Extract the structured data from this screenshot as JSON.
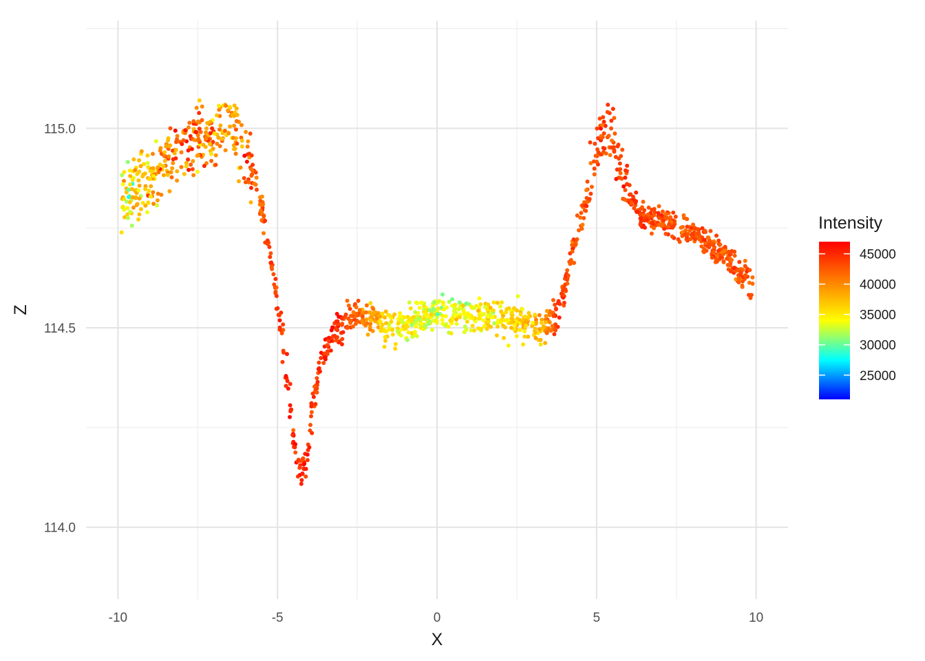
{
  "chart_data": {
    "type": "scatter",
    "title": "",
    "xlabel": "X",
    "ylabel": "Z",
    "xlim": [
      -11,
      11
    ],
    "ylim": [
      113.82,
      115.27
    ],
    "x_ticks": [
      -10,
      -5,
      0,
      5,
      10
    ],
    "x_tick_labels": [
      "-10",
      "-5",
      "0",
      "5",
      "10"
    ],
    "y_ticks": [
      114.0,
      114.5,
      115.0
    ],
    "y_tick_labels": [
      "114.0",
      "114.5",
      "115.0"
    ],
    "x_minor_ticks": [
      -7.5,
      -2.5,
      2.5,
      7.5
    ],
    "y_minor_ticks": [
      114.25,
      114.75,
      115.25
    ],
    "grid": true,
    "color_scale": {
      "title": "Intensity",
      "min": 21000,
      "max": 47000,
      "ticks": [
        25000,
        30000,
        35000,
        40000,
        45000
      ],
      "tick_labels": [
        "25000",
        "30000",
        "35000",
        "40000",
        "45000"
      ],
      "colors": [
        "#0000ff",
        "#00ffff",
        "#ffff00",
        "#ff8000",
        "#ff0000"
      ],
      "legend_position": "right"
    },
    "profile": {
      "description_points_x": [
        -9.9,
        -9.0,
        -8.0,
        -7.0,
        -6.5,
        -6.0,
        -5.5,
        -5.2,
        -4.9,
        -4.6,
        -4.35,
        -4.1,
        -3.9,
        -3.6,
        -3.3,
        -2.5,
        -1.5,
        0.0,
        1.5,
        2.5,
        3.3,
        3.8,
        4.2,
        4.5,
        4.8,
        5.1,
        5.4,
        5.7,
        6.0,
        6.4,
        7.0,
        8.0,
        9.0,
        9.9
      ],
      "description_points_z": [
        114.83,
        114.87,
        114.94,
        114.98,
        115.02,
        114.95,
        114.8,
        114.67,
        114.5,
        114.3,
        114.14,
        114.13,
        114.32,
        114.42,
        114.48,
        114.54,
        114.5,
        114.54,
        114.53,
        114.52,
        114.5,
        114.53,
        114.68,
        114.77,
        114.86,
        114.98,
        115.0,
        114.92,
        114.84,
        114.78,
        114.77,
        114.74,
        114.68,
        114.61
      ],
      "description_points_intensity": [
        33000,
        38000,
        42000,
        40000,
        38000,
        43000,
        42000,
        43000,
        44000,
        45000,
        45000,
        45000,
        44000,
        45000,
        45000,
        42000,
        35000,
        33000,
        35000,
        36000,
        38000,
        45000,
        43000,
        42000,
        43000,
        43000,
        43000,
        44000,
        44000,
        44000,
        43000,
        43000,
        43000,
        43000
      ],
      "n_points": 1500
    }
  }
}
